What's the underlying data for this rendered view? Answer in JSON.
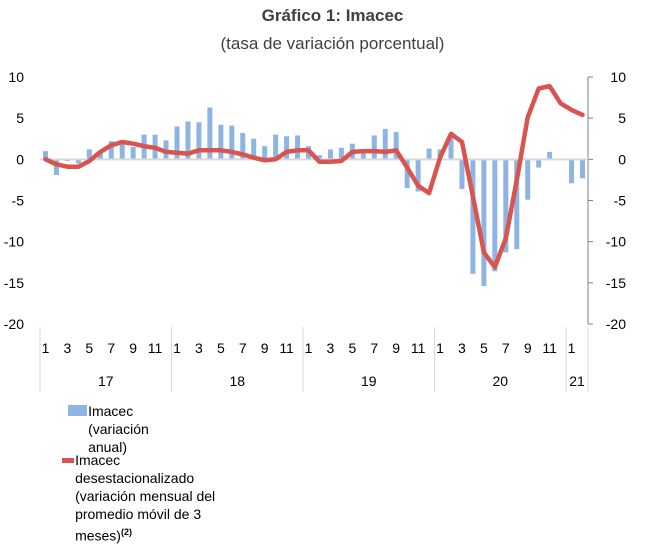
{
  "chart_data": {
    "type": "bar",
    "title": "Gráfico 1: Imacec",
    "subtitle": "(tasa de variación porcentual)",
    "xlabel": "",
    "ylabel": "",
    "ylim": [
      -20,
      10
    ],
    "y_ticks": [
      10,
      5,
      0,
      -5,
      -10,
      -15,
      -20
    ],
    "y_tick_labels": [
      "10",
      "5",
      "0",
      "-5",
      "-10",
      "-15",
      "-20"
    ],
    "y2_ticks": [
      10,
      5,
      0,
      -5,
      -10,
      -15,
      -20
    ],
    "y2_tick_labels": [
      "10",
      "5",
      "0",
      "-5",
      "-10",
      "-15",
      "-20"
    ],
    "grid": false,
    "legend_position": "bottom",
    "month_tick_labels": [
      "1",
      "3",
      "5",
      "7",
      "9",
      "11"
    ],
    "year_groups": [
      {
        "label": "17",
        "months": 12
      },
      {
        "label": "18",
        "months": 12
      },
      {
        "label": "19",
        "months": 12
      },
      {
        "label": "20",
        "months": 12
      },
      {
        "label": "21",
        "months": 2,
        "tick_labels": [
          "1"
        ]
      }
    ],
    "categories": [
      "2017-01",
      "2017-02",
      "2017-03",
      "2017-04",
      "2017-05",
      "2017-06",
      "2017-07",
      "2017-08",
      "2017-09",
      "2017-10",
      "2017-11",
      "2017-12",
      "2018-01",
      "2018-02",
      "2018-03",
      "2018-04",
      "2018-05",
      "2018-06",
      "2018-07",
      "2018-08",
      "2018-09",
      "2018-10",
      "2018-11",
      "2018-12",
      "2019-01",
      "2019-02",
      "2019-03",
      "2019-04",
      "2019-05",
      "2019-06",
      "2019-07",
      "2019-08",
      "2019-09",
      "2019-10",
      "2019-11",
      "2019-12",
      "2020-01",
      "2020-02",
      "2020-03",
      "2020-04",
      "2020-05",
      "2020-06",
      "2020-07",
      "2020-08",
      "2020-09",
      "2020-10",
      "2020-11",
      "2020-12",
      "2021-01",
      "2021-02"
    ],
    "series": [
      {
        "name": "Imacec (variación anual)",
        "type": "bar",
        "color": "#8db4e2",
        "values": [
          1.0,
          -1.9,
          -0.2,
          -0.5,
          1.2,
          0.9,
          2.2,
          2.1,
          1.5,
          3.0,
          3.0,
          2.3,
          4.0,
          4.6,
          4.5,
          6.3,
          4.2,
          4.1,
          3.2,
          2.5,
          1.6,
          3.0,
          2.8,
          2.9,
          1.6,
          0.5,
          1.2,
          1.4,
          1.9,
          1.1,
          2.9,
          3.7,
          3.3,
          -3.5,
          -3.9,
          1.3,
          1.2,
          2.8,
          -3.6,
          -13.9,
          -15.4,
          -13.6,
          -11.3,
          -10.9,
          -4.9,
          -1.0,
          0.9,
          0.0,
          -2.9,
          -2.3
        ]
      },
      {
        "name": "Imacec desestacionalizado (variación mensual del promedio móvil de 3 meses)",
        "footnote": "(2)",
        "type": "line",
        "color": "#d9534f",
        "values": [
          0.0,
          -0.6,
          -0.9,
          -0.9,
          -0.2,
          0.9,
          1.7,
          2.1,
          1.9,
          1.6,
          1.4,
          0.9,
          0.8,
          0.7,
          1.1,
          1.1,
          1.1,
          0.9,
          0.6,
          0.2,
          -0.1,
          0.0,
          0.9,
          1.1,
          1.1,
          -0.3,
          -0.3,
          -0.2,
          0.9,
          1.0,
          1.0,
          0.9,
          1.1,
          -1.0,
          -3.2,
          -4.1,
          0.2,
          3.1,
          2.1,
          -4.5,
          -11.3,
          -13.1,
          -9.6,
          -2.5,
          5.1,
          8.6,
          8.9,
          6.8,
          6.0,
          5.4
        ]
      }
    ]
  },
  "legend": {
    "bar_label": "Imacec (variación anual)",
    "line_label_line1": "Imacec desestacionalizado (variación mensual del promedio móvil de 3",
    "line_label_line2": "meses)",
    "line_footnote": "(2)"
  }
}
